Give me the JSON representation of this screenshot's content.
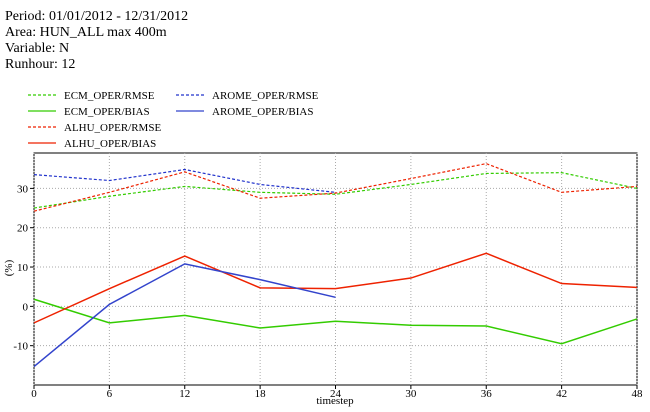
{
  "header": {
    "lines": [
      "Period: 01/01/2012 - 12/31/2012",
      "Area: HUN_ALL max 400m",
      "Variable: N",
      "Runhour: 12"
    ]
  },
  "chart_data": {
    "type": "line",
    "x": [
      0,
      6,
      12,
      18,
      24,
      30,
      36,
      42,
      48
    ],
    "xlabel": "timestep",
    "ylabel": "(%)",
    "xlim": [
      0,
      48
    ],
    "xticks": [
      0,
      6,
      12,
      18,
      24,
      30,
      36,
      42,
      48
    ],
    "ylim": [
      -20,
      39
    ],
    "yticks": [
      -10,
      0,
      10,
      20,
      30
    ],
    "grid": true,
    "series": [
      {
        "name": "ECM_OPER/RMSE",
        "color": "#33cc00",
        "linestyle": "dashed",
        "values": [
          25,
          28,
          30.5,
          29,
          28.5,
          31,
          33.8,
          34,
          30
        ]
      },
      {
        "name": "ECM_OPER/BIAS",
        "color": "#33cc00",
        "linestyle": "solid",
        "values": [
          1.8,
          -4.2,
          -2.3,
          -5.5,
          -3.8,
          -4.8,
          -5,
          -9.5,
          -3.2
        ]
      },
      {
        "name": "ALHU_OPER/RMSE",
        "color": "#ee2200",
        "linestyle": "dashed",
        "values": [
          24.2,
          29,
          34.2,
          27.5,
          28.8,
          32.5,
          36.3,
          29,
          30.5
        ]
      },
      {
        "name": "ALHU_OPER/BIAS",
        "color": "#ee2200",
        "linestyle": "solid",
        "values": [
          -4.2,
          4.5,
          12.8,
          4.7,
          4.5,
          7.2,
          13.5,
          5.8,
          4.8
        ]
      },
      {
        "name": "AROME_OPER/RMSE",
        "color": "#2233cc",
        "linestyle": "dashed",
        "values": [
          33.5,
          32,
          34.8,
          31,
          29,
          null,
          null,
          null,
          null
        ]
      },
      {
        "name": "AROME_OPER/BIAS",
        "color": "#3344cc",
        "linestyle": "solid",
        "values": [
          -15.3,
          0.5,
          10.8,
          6.8,
          2.3,
          null,
          null,
          null,
          null
        ]
      }
    ]
  }
}
